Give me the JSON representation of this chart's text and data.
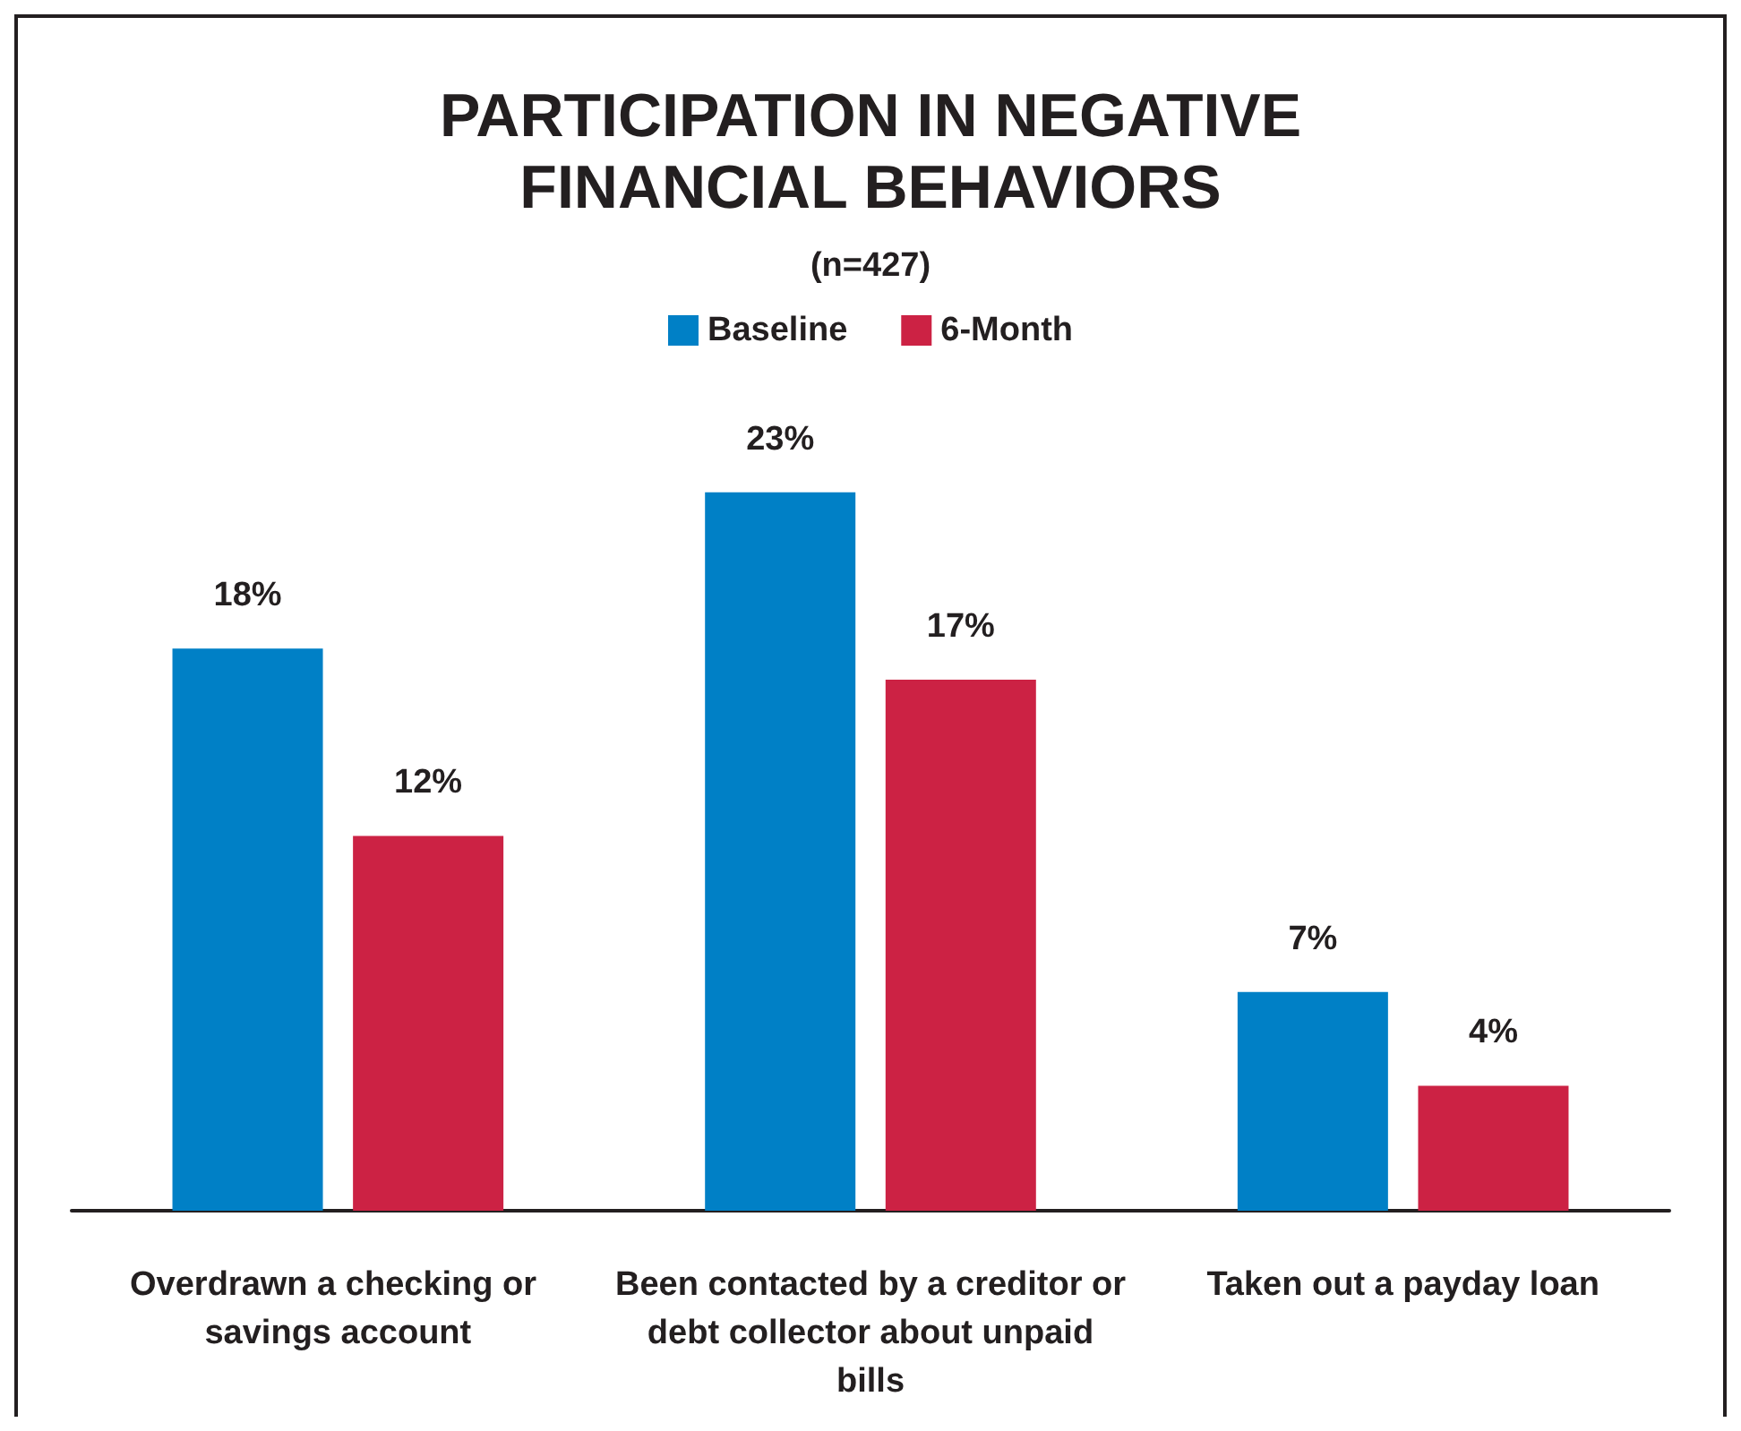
{
  "chart_data": {
    "type": "bar",
    "title": "PARTICIPATION IN NEGATIVE\nFINANCIAL BEHAVIORS",
    "subtitle": "(n=427)",
    "categories": [
      "Overdrawn a checking or savings account",
      "Been contacted by a creditor or debt collector about unpaid bills",
      "Taken out a payday loan"
    ],
    "series": [
      {
        "name": "Baseline",
        "color": "#0080c6",
        "values": [
          18,
          23,
          7
        ],
        "value_labels": [
          "18%",
          "23%",
          "7%"
        ]
      },
      {
        "name": "6-Month",
        "color": "#cc2244",
        "values": [
          12,
          17,
          4
        ],
        "value_labels": [
          "12%",
          "17%",
          "4%"
        ]
      }
    ],
    "legend": "top",
    "grid": false
  }
}
